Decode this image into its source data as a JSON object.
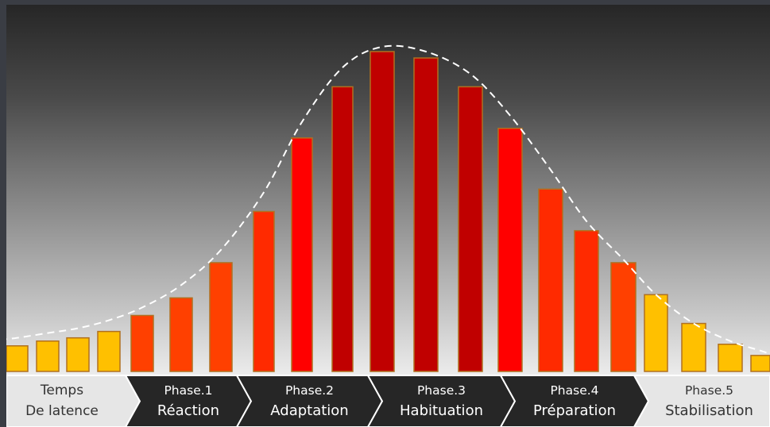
{
  "colors": {
    "yellow": "#FFC000",
    "orange": "#FF4000",
    "orange_red": "#FF2A00",
    "red": "#FF0000",
    "dark_red": "#C00000",
    "bar_border": "#B07020",
    "curve": "#FFFFFF",
    "phase_dark": "#262626",
    "phase_light": "#E6E6E6"
  },
  "chart_data": {
    "type": "bar",
    "title": "",
    "xlabel": "",
    "ylabel": "",
    "ylim": [
      0,
      100
    ],
    "values": [
      8,
      9.5,
      10.5,
      12.5,
      17.5,
      23,
      34,
      50,
      73,
      89,
      100,
      98,
      89,
      76,
      57,
      44,
      34,
      24,
      15,
      8.5,
      5
    ],
    "bar_colors": [
      "yellow",
      "yellow",
      "yellow",
      "yellow",
      "orange",
      "orange",
      "orange",
      "orange_red",
      "red",
      "dark_red",
      "dark_red",
      "dark_red",
      "dark_red",
      "red",
      "orange_red",
      "orange_red",
      "orange",
      "yellow",
      "yellow",
      "yellow",
      "yellow"
    ],
    "trend_curve": {
      "style": "dashed",
      "values": [
        10.5,
        12,
        13.5,
        16,
        20,
        27,
        38,
        56,
        78,
        95,
        101.5,
        100,
        93,
        80,
        63,
        47,
        35,
        24,
        15,
        9.5,
        6.5
      ]
    },
    "phases": [
      {
        "line1": "Temps",
        "line2": "De latence",
        "style": "light"
      },
      {
        "line1": "Phase.1",
        "line2": "Réaction",
        "style": "dark"
      },
      {
        "line1": "Phase.2",
        "line2": "Adaptation",
        "style": "dark"
      },
      {
        "line1": "Phase.3",
        "line2": "Habituation",
        "style": "dark"
      },
      {
        "line1": "Phase.4",
        "line2": "Préparation",
        "style": "dark"
      },
      {
        "line1": "Phase.5",
        "line2": "Stabilisation",
        "style": "light"
      }
    ]
  }
}
